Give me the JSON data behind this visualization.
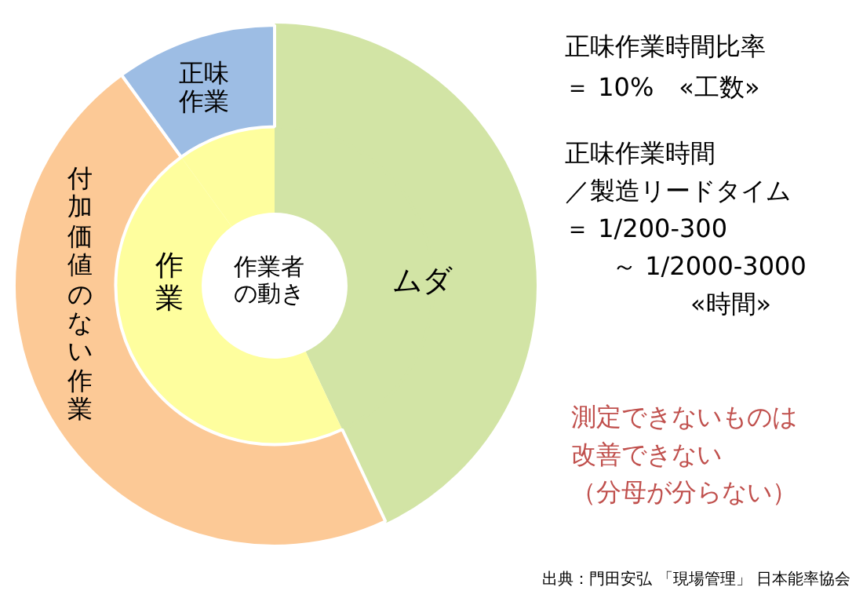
{
  "chart_data": {
    "type": "donut",
    "categories": [
      "ムダ",
      "付加価値のない作業",
      "正味作業"
    ],
    "series": [
      {
        "values": [
          43,
          47,
          10
        ],
        "colors": [
          "#d2e4a5",
          "#fcc996",
          "#9dbde4"
        ]
      },
      {
        "values": [
          43,
          47,
          10
        ],
        "colors": [
          "#d2e4a5",
          "#fefe9e",
          "#fefe9e"
        ]
      }
    ],
    "annotations": [
      "正味作業時間比率",
      "＝ 10%　«工数»",
      "正味作業時間",
      "／製造リードタイム",
      "＝ 1/200-300",
      "～ 1/2000-3000",
      "«時間»",
      "測定できないものは",
      "改善できない",
      "（分母が分らない）",
      "出典：門田安弘 「現場管理」 日本能率協会",
      "作業",
      "作業者の動き"
    ]
  }
}
